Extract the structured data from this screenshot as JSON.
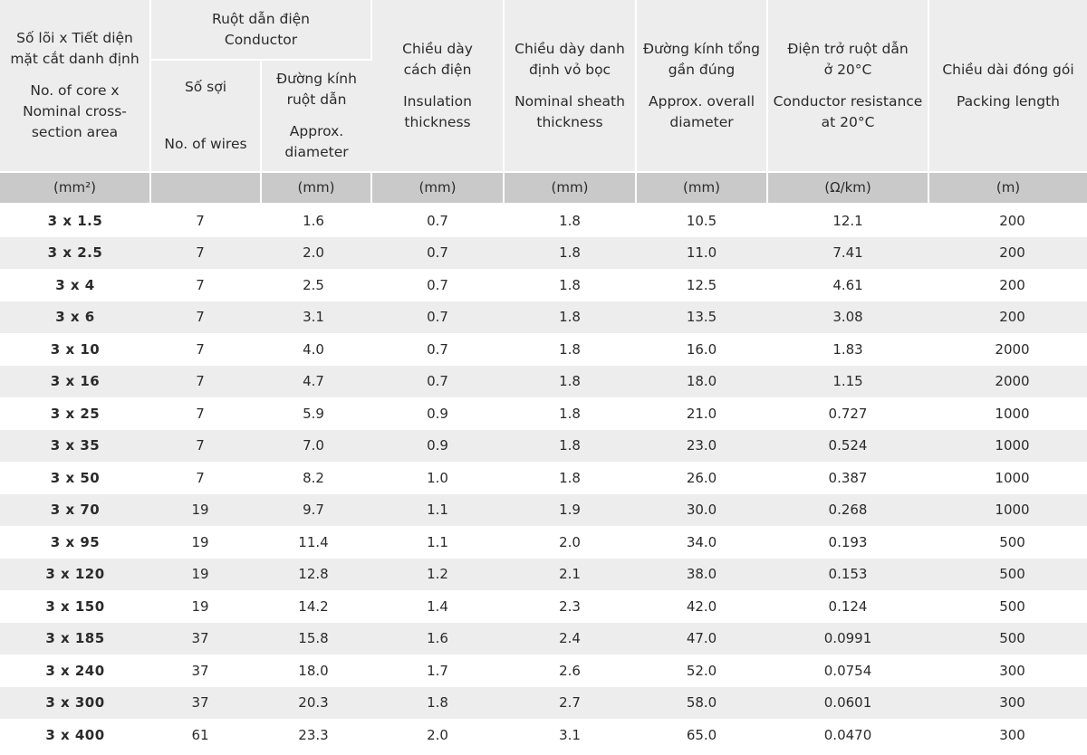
{
  "header": {
    "section_area": {
      "vi": "Số lõi x Tiết diện\nmặt cắt danh định",
      "en": "No. of core x\nNominal cross-\nsection area"
    },
    "conductor_group": {
      "vi": "Ruột dẫn điện",
      "en": "Conductor"
    },
    "wires": {
      "vi": "Số sợi",
      "en": "No. of wires"
    },
    "conductor_diameter": {
      "vi": "Đường kính\nruột dẫn",
      "en": "Approx.\ndiameter"
    },
    "insulation": {
      "vi": "Chiều dày\ncách điện",
      "en": "Insulation\nthickness"
    },
    "sheath": {
      "vi": "Chiều dày danh\nđịnh vỏ bọc",
      "en": "Nominal sheath\nthickness"
    },
    "overall_diameter": {
      "vi": "Đường kính tổng\ngần đúng",
      "en": "Approx. overall\ndiameter"
    },
    "resistance": {
      "vi": "Điện trở ruột dẫn\nở 20°C",
      "en": "Conductor resistance\nat 20°C"
    },
    "packing": {
      "vi": "Chiều dài đóng gói",
      "en": "Packing length"
    }
  },
  "units": [
    "(mm²)",
    "",
    "(mm)",
    "(mm)",
    "(mm)",
    "(mm)",
    "(Ω/km)",
    "(m)"
  ],
  "rows": [
    [
      "3 x 1.5",
      "7",
      "1.6",
      "0.7",
      "1.8",
      "10.5",
      "12.1",
      "200"
    ],
    [
      "3 x 2.5",
      "7",
      "2.0",
      "0.7",
      "1.8",
      "11.0",
      "7.41",
      "200"
    ],
    [
      "3 x 4",
      "7",
      "2.5",
      "0.7",
      "1.8",
      "12.5",
      "4.61",
      "200"
    ],
    [
      "3 x 6",
      "7",
      "3.1",
      "0.7",
      "1.8",
      "13.5",
      "3.08",
      "200"
    ],
    [
      "3 x 10",
      "7",
      "4.0",
      "0.7",
      "1.8",
      "16.0",
      "1.83",
      "2000"
    ],
    [
      "3 x 16",
      "7",
      "4.7",
      "0.7",
      "1.8",
      "18.0",
      "1.15",
      "2000"
    ],
    [
      "3 x 25",
      "7",
      "5.9",
      "0.9",
      "1.8",
      "21.0",
      "0.727",
      "1000"
    ],
    [
      "3 x 35",
      "7",
      "7.0",
      "0.9",
      "1.8",
      "23.0",
      "0.524",
      "1000"
    ],
    [
      "3 x 50",
      "7",
      "8.2",
      "1.0",
      "1.8",
      "26.0",
      "0.387",
      "1000"
    ],
    [
      "3 x 70",
      "19",
      "9.7",
      "1.1",
      "1.9",
      "30.0",
      "0.268",
      "1000"
    ],
    [
      "3 x 95",
      "19",
      "11.4",
      "1.1",
      "2.0",
      "34.0",
      "0.193",
      "500"
    ],
    [
      "3 x 120",
      "19",
      "12.8",
      "1.2",
      "2.1",
      "38.0",
      "0.153",
      "500"
    ],
    [
      "3 x 150",
      "19",
      "14.2",
      "1.4",
      "2.3",
      "42.0",
      "0.124",
      "500"
    ],
    [
      "3 x 185",
      "37",
      "15.8",
      "1.6",
      "2.4",
      "47.0",
      "0.0991",
      "500"
    ],
    [
      "3 x 240",
      "37",
      "18.0",
      "1.7",
      "2.6",
      "52.0",
      "0.0754",
      "300"
    ],
    [
      "3 x 300",
      "37",
      "20.3",
      "1.8",
      "2.7",
      "58.0",
      "0.0601",
      "300"
    ],
    [
      "3 x 400",
      "61",
      "23.3",
      "2.0",
      "3.1",
      "65.0",
      "0.0470",
      "300"
    ]
  ]
}
